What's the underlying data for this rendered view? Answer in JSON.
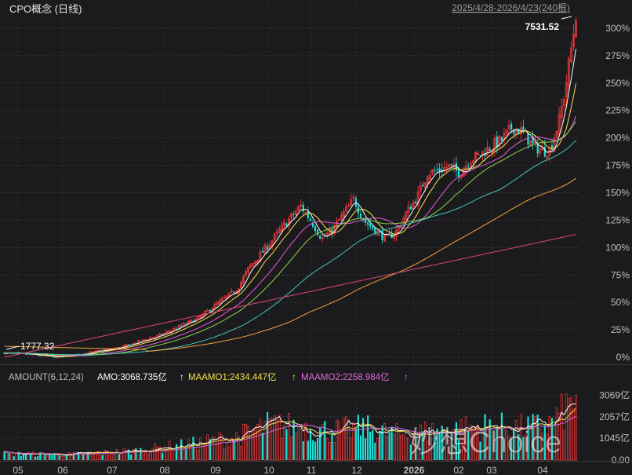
{
  "header": {
    "title": "CPO概念 (日线)",
    "range": "2025/4/28-2026/4/23(240根)"
  },
  "annotations": {
    "high_label": "7531.52",
    "low_label": "1777.32"
  },
  "volume_header": {
    "label": "AMOUNT(6,12,24)",
    "amo": "AMO:3068.735亿",
    "maamo1": "MAAMO1:2434.447亿",
    "maamo2": "MAAMO2:2258.984亿",
    "arrow": "↑"
  },
  "watermark": "妙想Choice",
  "colors": {
    "up": "#ff3b3b",
    "down": "#19e0d8",
    "ma5": "#ffffff",
    "ma10": "#f5e04a",
    "ma20": "#e65bd6",
    "ma30": "#8fd14f",
    "ma60": "#45c4c0",
    "ma120": "#f2a13a",
    "ma250": "#e0457b",
    "vol_ma1": "#f5e04a",
    "vol_ma2": "#d86ad8",
    "background": "#1b1b1d"
  },
  "chart_data": [
    {
      "type": "candlestick",
      "y_axis_ticks": [
        "300%",
        "275%",
        "250%",
        "225%",
        "200%",
        "175%",
        "150%",
        "125%",
        "100%",
        "75%",
        "50%",
        "25%",
        "0%"
      ],
      "ylim_percent": [
        -5,
        310
      ],
      "x_tick_labels": [
        "05",
        "06",
        "07",
        "08",
        "09",
        "10",
        "11",
        "12",
        "2026",
        "02",
        "03",
        "04"
      ],
      "bars": 240,
      "base_value": 1777.32,
      "key_points_percent": [
        [
          0,
          4
        ],
        [
          15,
          2
        ],
        [
          25,
          0
        ],
        [
          40,
          4
        ],
        [
          55,
          9
        ],
        [
          65,
          15
        ],
        [
          75,
          21
        ],
        [
          85,
          30
        ],
        [
          92,
          36
        ],
        [
          100,
          48
        ],
        [
          110,
          62
        ],
        [
          115,
          80
        ],
        [
          125,
          103
        ],
        [
          132,
          120
        ],
        [
          140,
          138
        ],
        [
          145,
          124
        ],
        [
          150,
          108
        ],
        [
          155,
          116
        ],
        [
          160,
          130
        ],
        [
          165,
          144
        ],
        [
          170,
          124
        ],
        [
          175,
          116
        ],
        [
          180,
          108
        ],
        [
          185,
          114
        ],
        [
          190,
          132
        ],
        [
          195,
          146
        ],
        [
          200,
          168
        ],
        [
          205,
          170
        ],
        [
          210,
          174
        ],
        [
          215,
          168
        ],
        [
          220,
          180
        ],
        [
          225,
          185
        ],
        [
          230,
          192
        ],
        [
          235,
          198
        ],
        [
          240,
          210
        ],
        [
          245,
          205
        ],
        [
          250,
          192
        ],
        [
          255,
          188
        ],
        [
          258,
          190
        ],
        [
          262,
          215
        ],
        [
          265,
          245
        ],
        [
          268,
          285
        ],
        [
          270,
          311
        ]
      ]
    },
    {
      "type": "bar",
      "y_axis_ticks": [
        "3069亿",
        "2057亿",
        "1045亿",
        "0.00"
      ],
      "ylim": [
        0,
        3500
      ],
      "key_points": [
        [
          0,
          300
        ],
        [
          30,
          260
        ],
        [
          60,
          420
        ],
        [
          90,
          780
        ],
        [
          110,
          1100
        ],
        [
          125,
          1650
        ],
        [
          140,
          1550
        ],
        [
          155,
          1380
        ],
        [
          170,
          1520
        ],
        [
          185,
          1200
        ],
        [
          200,
          1350
        ],
        [
          215,
          1480
        ],
        [
          230,
          1620
        ],
        [
          245,
          1500
        ],
        [
          258,
          1700
        ],
        [
          266,
          2450
        ],
        [
          270,
          3068.735
        ]
      ]
    }
  ]
}
